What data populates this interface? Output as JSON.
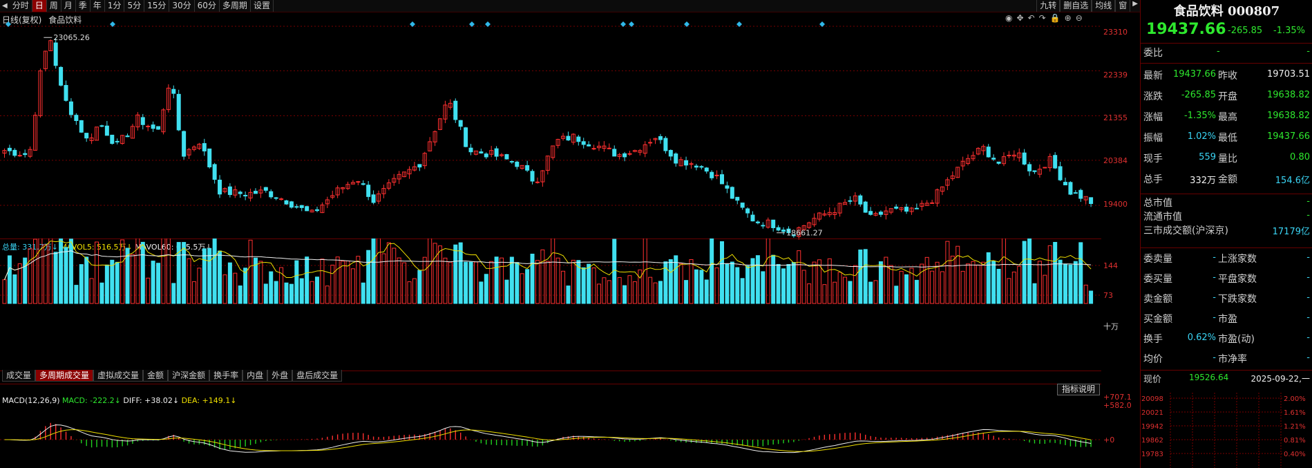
{
  "toolbar": {
    "items": [
      "分时",
      "日",
      "周",
      "月",
      "季",
      "年",
      "1分",
      "5分",
      "15分",
      "30分",
      "60分",
      "多周期",
      "设置"
    ],
    "active": "日",
    "right_items": [
      "九转",
      "删自选",
      "均线",
      "窗"
    ]
  },
  "chart_header": {
    "mode": "日线(复权)",
    "name": "食品饮料"
  },
  "price_axis": [
    "23310",
    "22339",
    "21355",
    "20384",
    "19400"
  ],
  "price_annotations": {
    "high": "23065.26",
    "low": "18661.27"
  },
  "volume_legend": {
    "total": "总量: 331.7万↓",
    "mavol5": "MAVOL5: 516.5万↓",
    "mavol60": "MAVOL60: 615.5万↓"
  },
  "volume_axis": [
    "144",
    "73",
    "十万"
  ],
  "indicator_tabs": [
    "成交量",
    "多周期成交量",
    "虚拟成交量",
    "金额",
    "沪深金额",
    "换手率",
    "内盘",
    "外盘",
    "盘后成交量"
  ],
  "active_indicator_tab": "多周期成交量",
  "macd_legend": {
    "name": "MACD(12,26,9)",
    "macd": "MACD: -222.2↓",
    "diff": "DIFF: +38.02↓",
    "dea": "DEA: +149.1↓"
  },
  "macd_axis": [
    "+707.1",
    "+582.0",
    "+0"
  ],
  "guide_button": "指标说明",
  "quote": {
    "title": "食品饮料 000807",
    "price": "19437.66",
    "change": "-265.85",
    "change_pct": "-1.35%",
    "weibi_label": "委比",
    "weibi_value": "-",
    "weibi_value2": "-",
    "rows": [
      {
        "k1": "最新",
        "v1": "19437.66",
        "c1": "g",
        "k2": "昨收",
        "v2": "19703.51",
        "c2": "w"
      },
      {
        "k1": "涨跌",
        "v1": "-265.85",
        "c1": "g",
        "k2": "开盘",
        "v2": "19638.82",
        "c2": "g"
      },
      {
        "k1": "涨幅",
        "v1": "-1.35%",
        "c1": "g",
        "k2": "最高",
        "v2": "19638.82",
        "c2": "g"
      },
      {
        "k1": "振幅",
        "v1": "1.02%",
        "c1": "c",
        "k2": "最低",
        "v2": "19437.66",
        "c2": "g"
      },
      {
        "k1": "现手",
        "v1": "559",
        "c1": "c",
        "k2": "量比",
        "v2": "0.80",
        "c2": "g"
      },
      {
        "k1": "总手",
        "v1": "332万",
        "c1": "w",
        "k2": "金额",
        "v2": "154.6亿",
        "c2": "c"
      }
    ],
    "single_rows": [
      {
        "k": "总市值",
        "v": "-",
        "c": "g"
      },
      {
        "k": "流通市值",
        "v": "-",
        "c": "g"
      },
      {
        "k": "三市成交额(沪深京)",
        "v": "17179亿",
        "c": "c"
      }
    ],
    "pair_rows": [
      {
        "k1": "委卖量",
        "v1": "-",
        "k2": "上涨家数",
        "v2": "-"
      },
      {
        "k1": "委买量",
        "v1": "-",
        "k2": "平盘家数",
        "v2": "-"
      },
      {
        "k1": "卖金额",
        "v1": "-",
        "k2": "下跌家数",
        "v2": "-"
      },
      {
        "k1": "买金额",
        "v1": "-",
        "k2": "市盈",
        "v2": "-"
      },
      {
        "k1": "换手",
        "v1": "0.62%",
        "k2": "市盈(动)",
        "v2": "-"
      },
      {
        "k1": "均价",
        "v1": "-",
        "k2": "市净率",
        "v2": "-"
      }
    ],
    "current_label": "现价",
    "current_value": "19526.64",
    "date": "2025-09-22,一"
  },
  "mini_axis_left": [
    "20098",
    "20021",
    "19942",
    "19862",
    "19783"
  ],
  "mini_axis_right": [
    "2.00%",
    "1.61%",
    "1.21%",
    "0.81%",
    "0.40%"
  ],
  "colors": {
    "up": "#ff3030",
    "down": "#40e0f0",
    "ma_white": "#f0f0f0",
    "ma_yellow": "#f0e000",
    "grid": "#7a0000"
  }
}
